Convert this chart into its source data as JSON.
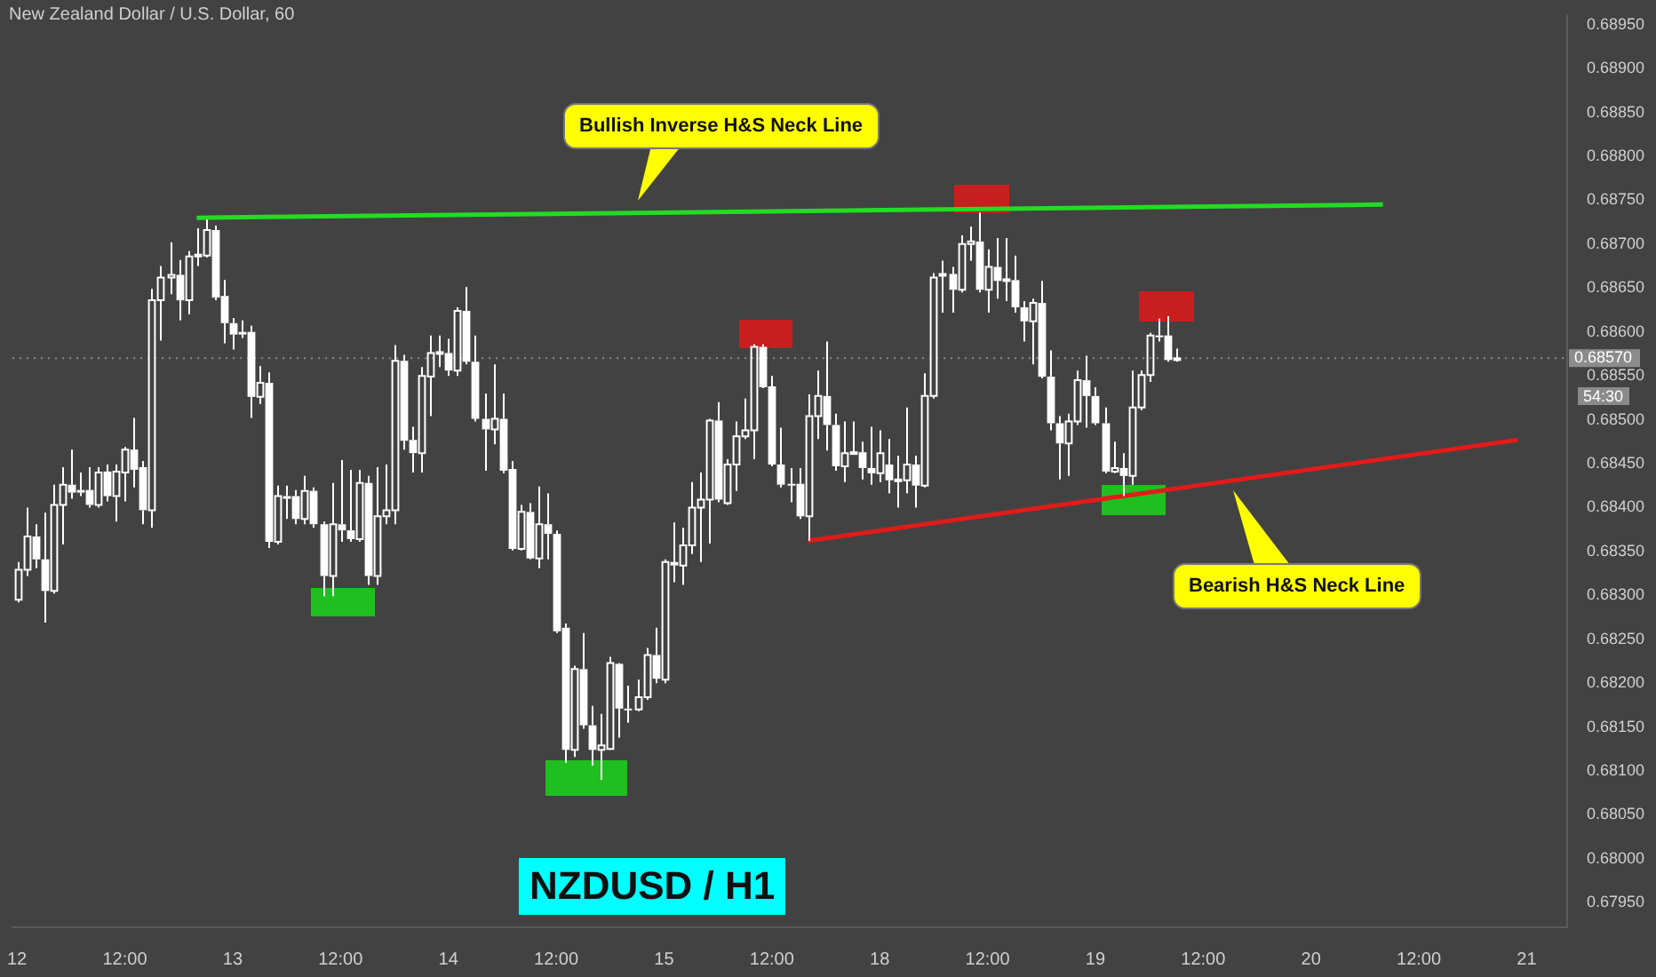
{
  "chart_data": {
    "type": "candlestick",
    "title": "New Zealand Dollar / U.S. Dollar, 60",
    "categories": [
      "12",
      null,
      null,
      null,
      null,
      null,
      null,
      null,
      null,
      null,
      null,
      null,
      "12:00",
      null,
      null,
      null,
      null,
      null,
      null,
      null,
      null,
      null,
      null,
      null,
      "13",
      null,
      null,
      null,
      null,
      null,
      null,
      null,
      null,
      null,
      null,
      null,
      "12:00",
      null,
      null,
      null,
      null,
      null,
      null,
      null,
      null,
      null,
      null,
      null,
      "14",
      null,
      null,
      null,
      null,
      null,
      null,
      null,
      null,
      null,
      null,
      null,
      "12:00",
      null,
      null,
      null,
      null,
      null,
      null,
      null,
      null,
      null,
      null,
      null,
      "15",
      null,
      null,
      null,
      null,
      null,
      null,
      null,
      null,
      null,
      null,
      null,
      "12:00",
      null,
      null,
      null,
      null,
      null,
      null,
      null,
      null,
      null,
      null,
      null,
      "18",
      null,
      null,
      null,
      null,
      null,
      null,
      null,
      null,
      null,
      null,
      null,
      "12:00",
      null,
      null,
      null,
      null,
      null,
      null,
      null,
      null,
      null,
      null,
      null,
      "19",
      null,
      null,
      null,
      null,
      null,
      null,
      null,
      null,
      null,
      null,
      null,
      "12:00",
      null,
      null,
      null,
      null,
      null,
      null,
      null,
      null,
      null,
      null,
      null,
      "20",
      null,
      null,
      null,
      null,
      null,
      null,
      null,
      null,
      null,
      null,
      null,
      "12:00",
      null,
      null,
      null,
      null,
      null,
      null,
      null,
      null,
      null,
      null,
      null,
      "21",
      null,
      null,
      null,
      null
    ],
    "color": "#ffffff",
    "ohlc": [
      [
        0.68295,
        0.68338,
        0.68292,
        0.68329
      ],
      [
        0.68329,
        0.684,
        0.68322,
        0.68367
      ],
      [
        0.68367,
        0.68381,
        0.68331,
        0.68341
      ],
      [
        0.68341,
        0.68394,
        0.68269,
        0.68305
      ],
      [
        0.68305,
        0.68426,
        0.68302,
        0.68403
      ],
      [
        0.68403,
        0.68446,
        0.68358,
        0.68426
      ],
      [
        0.68426,
        0.68466,
        0.6841,
        0.68417
      ],
      [
        0.6842,
        0.6844,
        0.68413,
        0.68417
      ],
      [
        0.6842,
        0.68446,
        0.684,
        0.68403
      ],
      [
        0.68403,
        0.68446,
        0.684,
        0.6844
      ],
      [
        0.68441,
        0.68449,
        0.68407,
        0.68413
      ],
      [
        0.68413,
        0.68449,
        0.68384,
        0.68441
      ],
      [
        0.6844,
        0.68469,
        0.68407,
        0.68466
      ],
      [
        0.68466,
        0.68502,
        0.68423,
        0.68443
      ],
      [
        0.68446,
        0.68453,
        0.68381,
        0.68397
      ],
      [
        0.68397,
        0.68649,
        0.68377,
        0.68636
      ],
      [
        0.68636,
        0.68675,
        0.6859,
        0.68662
      ],
      [
        0.68662,
        0.68702,
        0.68643,
        0.68665
      ],
      [
        0.68665,
        0.68682,
        0.68613,
        0.68636
      ],
      [
        0.68636,
        0.68692,
        0.6862,
        0.68686
      ],
      [
        0.68686,
        0.68718,
        0.68675,
        0.68688
      ],
      [
        0.68687,
        0.68728,
        0.68685,
        0.68716
      ],
      [
        0.68716,
        0.68721,
        0.68636,
        0.68639
      ],
      [
        0.68641,
        0.68659,
        0.68587,
        0.6861
      ],
      [
        0.6861,
        0.68616,
        0.6858,
        0.68597
      ],
      [
        0.686,
        0.68613,
        0.68593,
        0.68597
      ],
      [
        0.686,
        0.68607,
        0.68502,
        0.68526
      ],
      [
        0.68526,
        0.68561,
        0.68518,
        0.68542
      ],
      [
        0.68542,
        0.68554,
        0.68354,
        0.68361
      ],
      [
        0.68361,
        0.68425,
        0.68358,
        0.68413
      ],
      [
        0.68413,
        0.68425,
        0.68387,
        0.6841
      ],
      [
        0.68413,
        0.6842,
        0.68381,
        0.68387
      ],
      [
        0.68387,
        0.68436,
        0.68381,
        0.68419
      ],
      [
        0.68419,
        0.68423,
        0.68377,
        0.68381
      ],
      [
        0.68381,
        0.68384,
        0.68299,
        0.68322
      ],
      [
        0.68322,
        0.68428,
        0.68299,
        0.68381
      ],
      [
        0.68381,
        0.68454,
        0.68361,
        0.68374
      ],
      [
        0.68374,
        0.68443,
        0.68361,
        0.68364
      ],
      [
        0.68364,
        0.68443,
        0.68361,
        0.68428
      ],
      [
        0.68428,
        0.68436,
        0.68312,
        0.68322
      ],
      [
        0.68322,
        0.68446,
        0.68312,
        0.6839
      ],
      [
        0.6839,
        0.68449,
        0.68381,
        0.68397
      ],
      [
        0.68397,
        0.68585,
        0.68381,
        0.68567
      ],
      [
        0.68567,
        0.68574,
        0.68466,
        0.68476
      ],
      [
        0.68477,
        0.68492,
        0.6844,
        0.68462
      ],
      [
        0.68462,
        0.6856,
        0.6844,
        0.6855
      ],
      [
        0.68549,
        0.68596,
        0.68504,
        0.68576
      ],
      [
        0.68575,
        0.68596,
        0.6856,
        0.68577
      ],
      [
        0.68576,
        0.68592,
        0.6855,
        0.68556
      ],
      [
        0.68556,
        0.68628,
        0.6855,
        0.68624
      ],
      [
        0.68624,
        0.68651,
        0.68563,
        0.68566
      ],
      [
        0.68566,
        0.68596,
        0.68498,
        0.68501
      ],
      [
        0.68501,
        0.6853,
        0.68442,
        0.68489
      ],
      [
        0.68489,
        0.68563,
        0.68472,
        0.68501
      ],
      [
        0.68501,
        0.6853,
        0.68439,
        0.68442
      ],
      [
        0.68444,
        0.68453,
        0.68351,
        0.68353
      ],
      [
        0.68353,
        0.68403,
        0.68351,
        0.68395
      ],
      [
        0.68395,
        0.68405,
        0.68341,
        0.68342
      ],
      [
        0.68342,
        0.68424,
        0.68331,
        0.68381
      ],
      [
        0.68381,
        0.68416,
        0.68341,
        0.6837
      ],
      [
        0.6837,
        0.68374,
        0.68257,
        0.68259
      ],
      [
        0.68263,
        0.68268,
        0.68109,
        0.68124
      ],
      [
        0.68124,
        0.6822,
        0.68116,
        0.68216
      ],
      [
        0.68216,
        0.68257,
        0.68148,
        0.68152
      ],
      [
        0.68152,
        0.68174,
        0.68106,
        0.68124
      ],
      [
        0.68124,
        0.68165,
        0.6809,
        0.68129
      ],
      [
        0.68125,
        0.6823,
        0.68124,
        0.68223
      ],
      [
        0.68222,
        0.68223,
        0.68138,
        0.68171
      ],
      [
        0.68171,
        0.68197,
        0.68155,
        0.6817
      ],
      [
        0.6817,
        0.68204,
        0.68168,
        0.68184
      ],
      [
        0.68184,
        0.6824,
        0.68181,
        0.68232
      ],
      [
        0.68232,
        0.68263,
        0.682,
        0.68205
      ],
      [
        0.68204,
        0.68341,
        0.682,
        0.68338
      ],
      [
        0.68338,
        0.68383,
        0.68315,
        0.68334
      ],
      [
        0.68334,
        0.68377,
        0.68312,
        0.68357
      ],
      [
        0.68357,
        0.68429,
        0.68347,
        0.684
      ],
      [
        0.684,
        0.6844,
        0.68338,
        0.68409
      ],
      [
        0.68409,
        0.68501,
        0.68359,
        0.68499
      ],
      [
        0.68499,
        0.6852,
        0.68406,
        0.68409
      ],
      [
        0.68405,
        0.68455,
        0.68403,
        0.68449
      ],
      [
        0.68449,
        0.68498,
        0.68419,
        0.68481
      ],
      [
        0.68481,
        0.68524,
        0.68478,
        0.68488
      ],
      [
        0.68488,
        0.68586,
        0.68455,
        0.68583
      ],
      [
        0.68583,
        0.68586,
        0.68536,
        0.68537
      ],
      [
        0.68538,
        0.6855,
        0.68447,
        0.68449
      ],
      [
        0.68449,
        0.68491,
        0.68423,
        0.68426
      ],
      [
        0.68427,
        0.68445,
        0.68406,
        0.68425
      ],
      [
        0.68427,
        0.68445,
        0.68387,
        0.6839
      ],
      [
        0.6839,
        0.68529,
        0.68362,
        0.68504
      ],
      [
        0.68504,
        0.68556,
        0.68478,
        0.68527
      ],
      [
        0.68527,
        0.68589,
        0.68465,
        0.68494
      ],
      [
        0.68494,
        0.68507,
        0.68442,
        0.68447
      ],
      [
        0.68447,
        0.68498,
        0.68429,
        0.68462
      ],
      [
        0.68462,
        0.68498,
        0.6846,
        0.68463
      ],
      [
        0.68463,
        0.68475,
        0.68432,
        0.68445
      ],
      [
        0.68445,
        0.68492,
        0.68426,
        0.68439
      ],
      [
        0.68439,
        0.68488,
        0.68429,
        0.68462
      ],
      [
        0.68449,
        0.68478,
        0.68416,
        0.68431
      ],
      [
        0.68431,
        0.68459,
        0.684,
        0.68432
      ],
      [
        0.68431,
        0.68514,
        0.68416,
        0.68449
      ],
      [
        0.68449,
        0.68459,
        0.684,
        0.68425
      ],
      [
        0.68425,
        0.68553,
        0.68423,
        0.68527
      ],
      [
        0.68527,
        0.68667,
        0.68524,
        0.68662
      ],
      [
        0.68664,
        0.68681,
        0.68622,
        0.68666
      ],
      [
        0.68666,
        0.68674,
        0.68622,
        0.68648
      ],
      [
        0.68648,
        0.6871,
        0.68645,
        0.687
      ],
      [
        0.687,
        0.6872,
        0.68681,
        0.68703
      ],
      [
        0.68703,
        0.68736,
        0.68645,
        0.68648
      ],
      [
        0.68648,
        0.68694,
        0.68622,
        0.68674
      ],
      [
        0.68674,
        0.68707,
        0.68638,
        0.68658
      ],
      [
        0.68658,
        0.68707,
        0.68635,
        0.6866
      ],
      [
        0.68659,
        0.68687,
        0.68622,
        0.68628
      ],
      [
        0.68628,
        0.68635,
        0.68589,
        0.68612
      ],
      [
        0.68612,
        0.68638,
        0.68563,
        0.68633
      ],
      [
        0.68633,
        0.68658,
        0.68547,
        0.68549
      ],
      [
        0.68549,
        0.68579,
        0.68488,
        0.68496
      ],
      [
        0.68496,
        0.68504,
        0.68432,
        0.68473
      ],
      [
        0.68473,
        0.68507,
        0.68436,
        0.68498
      ],
      [
        0.68498,
        0.68556,
        0.68494,
        0.68545
      ],
      [
        0.68545,
        0.68573,
        0.68491,
        0.68527
      ],
      [
        0.68527,
        0.68537,
        0.68494,
        0.68496
      ],
      [
        0.68496,
        0.68514,
        0.68439,
        0.68441
      ],
      [
        0.68441,
        0.68475,
        0.68439,
        0.68445
      ],
      [
        0.68445,
        0.68462,
        0.68413,
        0.68436
      ],
      [
        0.68436,
        0.68556,
        0.68426,
        0.68514
      ],
      [
        0.68514,
        0.68556,
        0.68511,
        0.68551
      ],
      [
        0.68551,
        0.68599,
        0.68543,
        0.68596
      ],
      [
        0.68596,
        0.68615,
        0.68589,
        0.68594
      ],
      [
        0.68596,
        0.68618,
        0.68566,
        0.68568
      ],
      [
        0.68569,
        0.68581,
        0.68566,
        0.6857
      ],
      null,
      null,
      null,
      null,
      null,
      null,
      null,
      null,
      null,
      null,
      null,
      null,
      null,
      null,
      null,
      null,
      null,
      null,
      null,
      null,
      null,
      null,
      null,
      null,
      null,
      null,
      null,
      null,
      null,
      null,
      null,
      null,
      null,
      null,
      null,
      null,
      null,
      null,
      null,
      null,
      null,
      null,
      null
    ],
    "series": [
      {
        "type": "line",
        "color": "#22dd22",
        "values": [
          null,
          null,
          null,
          null,
          null,
          null,
          null,
          null,
          null,
          null,
          null,
          null,
          null,
          null,
          null,
          null,
          null,
          null,
          null,
          null,
          0.6873,
          null,
          null,
          null,
          null,
          null,
          null,
          null,
          null,
          null,
          null,
          null,
          null,
          null,
          null,
          null,
          null,
          null,
          null,
          null,
          null,
          null,
          null,
          null,
          null,
          null,
          null,
          null,
          null,
          null,
          null,
          null,
          null,
          null,
          null,
          null,
          null,
          null,
          null,
          null,
          null,
          null,
          null,
          null,
          null,
          null,
          null,
          null,
          null,
          null,
          null,
          null,
          null,
          null,
          null,
          null,
          null,
          null,
          null,
          null,
          null,
          null,
          null,
          null,
          null,
          null,
          null,
          null,
          null,
          null,
          null,
          null,
          null,
          null,
          null,
          null,
          null,
          null,
          null,
          null,
          null,
          null,
          null,
          null,
          null,
          null,
          null,
          null,
          null,
          null,
          null,
          null,
          null,
          null,
          null,
          null,
          null,
          null,
          null,
          null,
          null,
          null,
          null,
          null,
          null,
          null,
          null,
          null,
          null,
          null,
          null,
          null,
          null,
          null,
          null,
          null,
          null,
          null,
          null,
          null,
          null,
          null,
          null,
          null,
          null,
          null,
          null,
          null,
          null,
          null,
          null,
          null,
          0.68745,
          null,
          null,
          null,
          null,
          null,
          null,
          null,
          null,
          null,
          null,
          null,
          null,
          null,
          null,
          null,
          null,
          null,
          null,
          null,
          null
        ]
      },
      {
        "type": "line",
        "color": "#e01b1b",
        "values": [
          null,
          null,
          null,
          null,
          null,
          null,
          null,
          null,
          null,
          null,
          null,
          null,
          null,
          null,
          null,
          null,
          null,
          null,
          null,
          null,
          null,
          null,
          null,
          null,
          null,
          null,
          null,
          null,
          null,
          null,
          null,
          null,
          null,
          null,
          null,
          null,
          null,
          null,
          null,
          null,
          null,
          null,
          null,
          null,
          null,
          null,
          null,
          null,
          null,
          null,
          null,
          null,
          null,
          null,
          null,
          null,
          null,
          null,
          null,
          null,
          null,
          null,
          null,
          null,
          null,
          null,
          null,
          null,
          null,
          null,
          null,
          null,
          null,
          null,
          null,
          null,
          null,
          null,
          null,
          null,
          null,
          null,
          null,
          null,
          null,
          null,
          null,
          null,
          0.68362,
          null,
          null,
          null,
          null,
          null,
          null,
          null,
          null,
          null,
          null,
          null,
          null,
          null,
          null,
          null,
          null,
          null,
          null,
          null,
          null,
          null,
          null,
          null,
          null,
          null,
          null,
          null,
          null,
          null,
          null,
          null,
          null,
          null,
          null,
          null,
          null,
          null,
          null,
          null,
          null,
          null,
          null,
          null,
          null,
          null,
          null,
          null,
          null,
          null,
          null,
          null,
          null,
          null,
          null,
          null,
          null,
          null,
          null,
          null,
          null,
          null,
          null,
          null,
          null,
          null,
          null,
          null,
          null,
          null,
          null,
          null,
          null,
          null,
          null,
          null,
          null,
          null,
          null,
          0.68477,
          null,
          null,
          null,
          null,
          null
        ]
      }
    ],
    "ylim": [
      0.67922,
      0.68961
    ],
    "yticks": [
      {
        "value": 0.6795,
        "label": "0.67950"
      },
      {
        "value": 0.68,
        "label": "0.68000"
      },
      {
        "value": 0.6805,
        "label": "0.68050"
      },
      {
        "value": 0.681,
        "label": "0.68100"
      },
      {
        "value": 0.6815,
        "label": "0.68150"
      },
      {
        "value": 0.682,
        "label": "0.68200"
      },
      {
        "value": 0.6825,
        "label": "0.68250"
      },
      {
        "value": 0.683,
        "label": "0.68300"
      },
      {
        "value": 0.6835,
        "label": "0.68350"
      },
      {
        "value": 0.684,
        "label": "0.68400"
      },
      {
        "value": 0.6845,
        "label": "0.68450"
      },
      {
        "value": 0.685,
        "label": "0.68500"
      },
      {
        "value": 0.6855,
        "label": "0.68550"
      },
      {
        "value": 0.686,
        "label": "0.68600"
      },
      {
        "value": 0.6865,
        "label": "0.68650"
      },
      {
        "value": 0.687,
        "label": "0.68700"
      },
      {
        "value": 0.6875,
        "label": "0.68750"
      },
      {
        "value": 0.688,
        "label": "0.68800"
      },
      {
        "value": 0.6885,
        "label": "0.68850"
      },
      {
        "value": 0.689,
        "label": "0.68900"
      },
      {
        "value": 0.6895,
        "label": "0.68950"
      }
    ],
    "ref_lines": [
      {
        "axis": "y",
        "value": 0.6857,
        "label": "0.68570",
        "color": "#8c8c8c",
        "line_style": "dotted"
      }
    ],
    "annotations": [
      "Bullish Inverse H&S Neck Line",
      "Bearish H&S Neck Line",
      "NZDUSD / H1",
      "54:30"
    ]
  }
}
